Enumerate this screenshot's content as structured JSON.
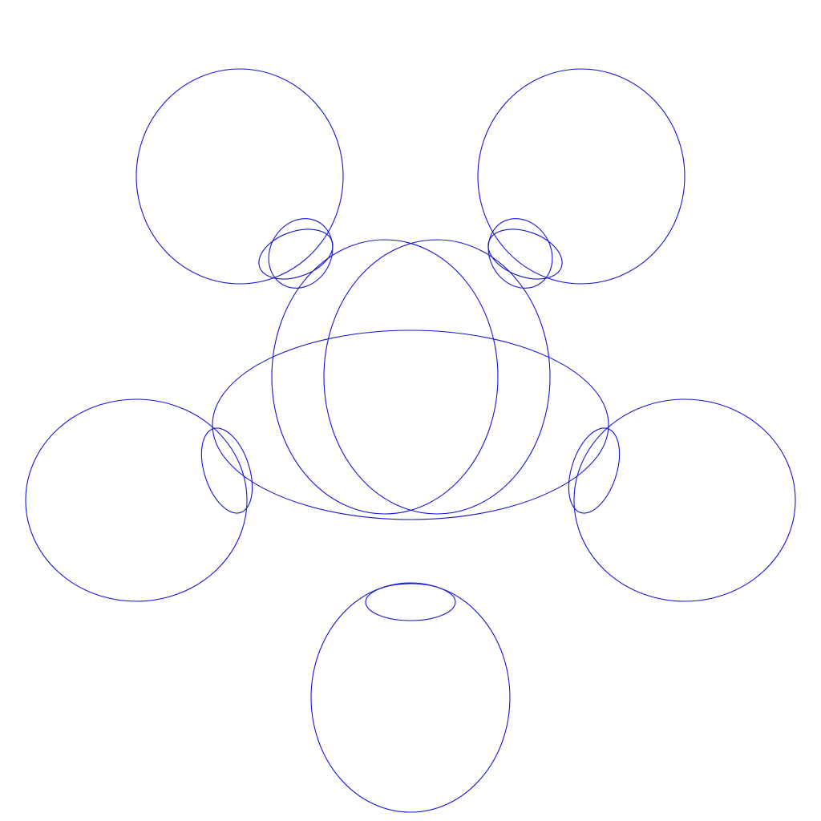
{
  "figure": {
    "description_name": "spirograph-rosette",
    "stroke_color": "#1515d0",
    "background_color": "#ffffff",
    "curve_count": 15
  }
}
